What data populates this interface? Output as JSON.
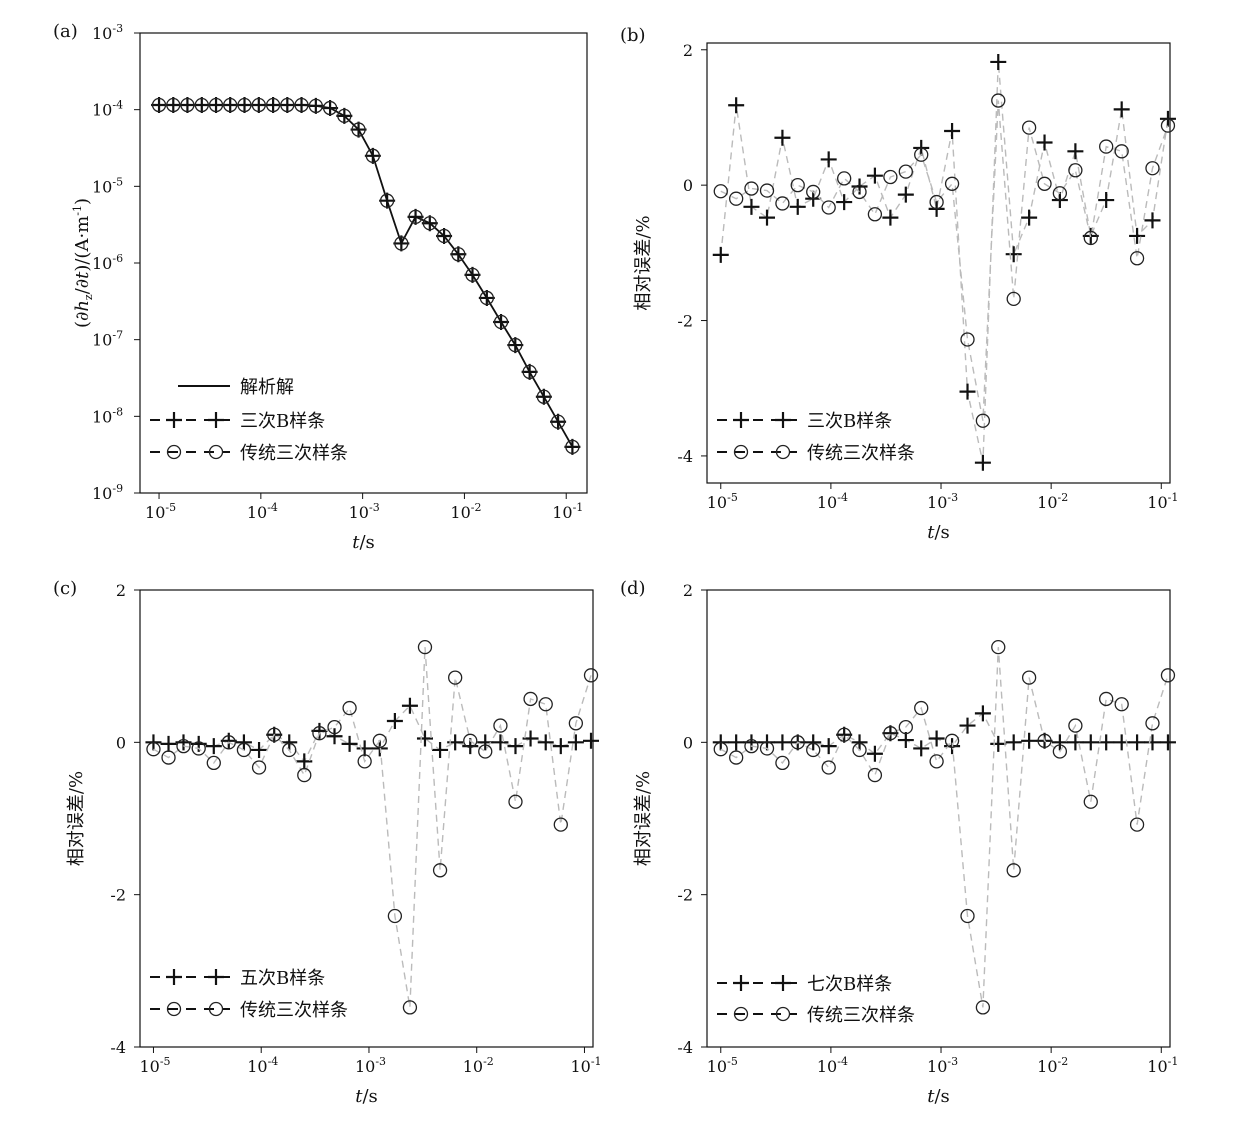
{
  "figure": {
    "ytick_exp_base": "10",
    "xtick_exp_base": "10"
  },
  "chart_data": [
    {
      "id": "a",
      "type": "line",
      "panel_label": "(a)",
      "xlabel_italic": "t",
      "xlabel_rest": "/s",
      "ylabel": "(∂h_z/∂t)/(A·m⁻¹)",
      "ylabel_parts": [
        "(∂",
        "h",
        "z",
        "/∂",
        "t",
        ")/(A·m",
        "-1",
        ")"
      ],
      "xscale": "log",
      "yscale": "log",
      "xlim": [
        6.5e-06,
        0.16
      ],
      "ylim": [
        1e-09,
        0.001
      ],
      "xtick_exponents": [
        "-5",
        "-4",
        "-3",
        "-2",
        "-1"
      ],
      "xtick_values": [
        1e-05,
        0.0001,
        0.001,
        0.01,
        0.1
      ],
      "ytick_exponents": [
        "-3",
        "-4",
        "-5",
        "-6",
        "-7",
        "-8",
        "-9"
      ],
      "ytick_values": [
        0.001,
        0.0001,
        1e-05,
        1e-06,
        1e-07,
        1e-08,
        1e-09
      ],
      "legend_position": "bottom-left",
      "x": [
        1e-05,
        1.38e-05,
        1.9e-05,
        2.63e-05,
        3.63e-05,
        5e-05,
        6.91e-05,
        9.55e-05,
        0.000132,
        0.000182,
        0.000251,
        0.000347,
        0.000479,
        0.000661,
        0.000912,
        0.00126,
        0.00174,
        0.0024,
        0.00331,
        0.00457,
        0.00631,
        0.00871,
        0.012,
        0.0166,
        0.0229,
        0.0316,
        0.0437,
        0.0603,
        0.0832,
        0.115
      ],
      "series": [
        {
          "name": "解析解",
          "marker": "none",
          "line": "solid",
          "color": "#111111",
          "values": [
            0.000115,
            0.000115,
            0.000115,
            0.000115,
            0.000115,
            0.000115,
            0.000115,
            0.000115,
            0.000115,
            0.000115,
            0.000115,
            0.000112,
            0.000105,
            8.3e-05,
            5.5e-05,
            2.5e-05,
            6.5e-06,
            1.8e-06,
            4e-06,
            3.3e-06,
            2.25e-06,
            1.3e-06,
            7e-07,
            3.5e-07,
            1.7e-07,
            8.5e-08,
            3.8e-08,
            1.8e-08,
            8.5e-09,
            4e-09
          ]
        },
        {
          "name": "三次B样条",
          "marker": "plus",
          "line": "dashed",
          "color": "#111111",
          "values": [
            0.000115,
            0.000115,
            0.000115,
            0.000115,
            0.000115,
            0.000115,
            0.000115,
            0.000115,
            0.000115,
            0.000115,
            0.000115,
            0.000112,
            0.000105,
            8.3e-05,
            5.5e-05,
            2.5e-05,
            6.5e-06,
            1.8e-06,
            4e-06,
            3.3e-06,
            2.25e-06,
            1.3e-06,
            7e-07,
            3.5e-07,
            1.7e-07,
            8.5e-08,
            3.8e-08,
            1.8e-08,
            8.5e-09,
            4e-09
          ]
        },
        {
          "name": "传统三次样条",
          "marker": "circle",
          "line": "dashed",
          "color": "#111111",
          "values": [
            0.000115,
            0.000115,
            0.000115,
            0.000115,
            0.000115,
            0.000115,
            0.000115,
            0.000115,
            0.000115,
            0.000115,
            0.000115,
            0.000112,
            0.000105,
            8.3e-05,
            5.5e-05,
            2.5e-05,
            6.5e-06,
            1.8e-06,
            4e-06,
            3.3e-06,
            2.25e-06,
            1.3e-06,
            7e-07,
            3.5e-07,
            1.7e-07,
            8.5e-08,
            3.8e-08,
            1.8e-08,
            8.5e-09,
            4e-09
          ]
        }
      ]
    },
    {
      "id": "b",
      "type": "line",
      "panel_label": "(b)",
      "xlabel_italic": "t",
      "xlabel_rest": "/s",
      "ylabel": "相对误差/%",
      "xscale": "log",
      "yscale": "linear",
      "xlim": [
        7.5e-06,
        0.12
      ],
      "ylim": [
        -4.4,
        2.1
      ],
      "xtick_exponents": [
        "-5",
        "-4",
        "-3",
        "-2",
        "-1"
      ],
      "xtick_values": [
        1e-05,
        0.0001,
        0.001,
        0.01,
        0.1
      ],
      "ytick_labels": [
        "2",
        "0",
        "-2",
        "-4"
      ],
      "ytick_values": [
        2,
        0,
        -2,
        -4
      ],
      "legend_position": "bottom-left",
      "series": [
        {
          "name": "三次B样条",
          "marker": "plus",
          "line": "dashed",
          "color": "#111111",
          "x": [
            1e-05,
            1.38e-05,
            1.9e-05,
            2.63e-05,
            3.63e-05,
            5e-05,
            6.91e-05,
            9.55e-05,
            0.000132,
            0.000182,
            0.000251,
            0.000347,
            0.000479,
            0.000661,
            0.000912,
            0.00126,
            0.00174,
            0.0024,
            0.00331,
            0.00457,
            0.00631,
            0.00871,
            0.012,
            0.0166,
            0.0229,
            0.0316,
            0.0437,
            0.0603,
            0.0832,
            0.115
          ],
          "values": [
            -1.03,
            1.18,
            -0.32,
            -0.48,
            0.7,
            -0.32,
            -0.2,
            0.38,
            -0.25,
            -0.02,
            0.14,
            -0.48,
            -0.14,
            0.55,
            -0.35,
            0.8,
            -3.05,
            -4.1,
            1.82,
            -1.02,
            -0.48,
            0.63,
            -0.22,
            0.5,
            -0.75,
            -0.22,
            1.12,
            -0.75,
            -0.52,
            0.98
          ]
        },
        {
          "name": "传统三次样条",
          "marker": "circle",
          "line": "dashed",
          "color": "#111111",
          "x": [
            1e-05,
            1.38e-05,
            1.9e-05,
            2.63e-05,
            3.63e-05,
            5e-05,
            6.91e-05,
            9.55e-05,
            0.000132,
            0.000182,
            0.000251,
            0.000347,
            0.000479,
            0.000661,
            0.000912,
            0.00126,
            0.00174,
            0.0024,
            0.00331,
            0.00457,
            0.00631,
            0.00871,
            0.012,
            0.0166,
            0.0229,
            0.0316,
            0.0437,
            0.0603,
            0.0832,
            0.115
          ],
          "values": [
            -0.09,
            -0.2,
            -0.05,
            -0.08,
            -0.27,
            0.0,
            -0.1,
            -0.33,
            0.1,
            -0.1,
            -0.43,
            0.12,
            0.2,
            0.45,
            -0.25,
            0.02,
            -2.28,
            -3.48,
            1.25,
            -1.68,
            0.85,
            0.02,
            -0.12,
            0.22,
            -0.78,
            0.57,
            0.5,
            -1.08,
            0.25,
            0.88
          ]
        }
      ]
    },
    {
      "id": "c",
      "type": "line",
      "panel_label": "(c)",
      "xlabel_italic": "t",
      "xlabel_rest": "/s",
      "ylabel": "相对误差/%",
      "xscale": "log",
      "yscale": "linear",
      "xlim": [
        7.5e-06,
        0.12
      ],
      "ylim": [
        -4,
        2
      ],
      "xtick_exponents": [
        "-5",
        "-4",
        "-3",
        "-2",
        "-1"
      ],
      "xtick_values": [
        1e-05,
        0.0001,
        0.001,
        0.01,
        0.1
      ],
      "ytick_labels": [
        "2",
        "0",
        "-2",
        "-4"
      ],
      "ytick_values": [
        2,
        0,
        -2,
        -4
      ],
      "legend_position": "bottom-left",
      "series": [
        {
          "name": "五次B样条",
          "marker": "plus",
          "line": "dashed",
          "color": "#111111",
          "x": [
            1e-05,
            1.38e-05,
            1.9e-05,
            2.63e-05,
            3.63e-05,
            5e-05,
            6.91e-05,
            9.55e-05,
            0.000132,
            0.000182,
            0.000251,
            0.000347,
            0.000479,
            0.000661,
            0.000912,
            0.00126,
            0.00174,
            0.0024,
            0.00331,
            0.00457,
            0.00631,
            0.00871,
            0.012,
            0.0166,
            0.0229,
            0.0316,
            0.0437,
            0.0603,
            0.0832,
            0.115
          ],
          "values": [
            0.0,
            -0.02,
            0.0,
            -0.02,
            -0.05,
            0.02,
            0.0,
            -0.1,
            0.1,
            0.0,
            -0.25,
            0.15,
            0.08,
            -0.02,
            -0.08,
            -0.08,
            0.28,
            0.48,
            0.05,
            -0.1,
            0.0,
            -0.05,
            0.0,
            0.0,
            -0.05,
            0.05,
            0.0,
            -0.05,
            0.0,
            0.02
          ]
        },
        {
          "name": "传统三次样条",
          "marker": "circle",
          "line": "dashed",
          "color": "#111111",
          "x": [
            1e-05,
            1.38e-05,
            1.9e-05,
            2.63e-05,
            3.63e-05,
            5e-05,
            6.91e-05,
            9.55e-05,
            0.000132,
            0.000182,
            0.000251,
            0.000347,
            0.000479,
            0.000661,
            0.000912,
            0.00126,
            0.00174,
            0.0024,
            0.00331,
            0.00457,
            0.00631,
            0.00871,
            0.012,
            0.0166,
            0.0229,
            0.0316,
            0.0437,
            0.0603,
            0.0832,
            0.115
          ],
          "values": [
            -0.09,
            -0.2,
            -0.05,
            -0.08,
            -0.27,
            0.0,
            -0.1,
            -0.33,
            0.1,
            -0.1,
            -0.43,
            0.12,
            0.2,
            0.45,
            -0.25,
            0.02,
            -2.28,
            -3.48,
            1.25,
            -1.68,
            0.85,
            0.02,
            -0.12,
            0.22,
            -0.78,
            0.57,
            0.5,
            -1.08,
            0.25,
            0.88
          ]
        }
      ]
    },
    {
      "id": "d",
      "type": "line",
      "panel_label": "(d)",
      "xlabel_italic": "t",
      "xlabel_rest": "/s",
      "ylabel": "相对误差/%",
      "xscale": "log",
      "yscale": "linear",
      "xlim": [
        7.5e-06,
        0.12
      ],
      "ylim": [
        -4,
        2
      ],
      "xtick_exponents": [
        "-5",
        "-4",
        "-3",
        "-2",
        "-1"
      ],
      "xtick_values": [
        1e-05,
        0.0001,
        0.001,
        0.01,
        0.1
      ],
      "ytick_labels": [
        "2",
        "0",
        "-2",
        "-4"
      ],
      "ytick_values": [
        2,
        0,
        -2,
        -4
      ],
      "legend_position": "bottom-left",
      "series": [
        {
          "name": "七次B样条",
          "marker": "plus",
          "line": "dashed",
          "color": "#111111",
          "x": [
            1e-05,
            1.38e-05,
            1.9e-05,
            2.63e-05,
            3.63e-05,
            5e-05,
            6.91e-05,
            9.55e-05,
            0.000132,
            0.000182,
            0.000251,
            0.000347,
            0.000479,
            0.000661,
            0.000912,
            0.00126,
            0.00174,
            0.0024,
            0.00331,
            0.00457,
            0.00631,
            0.00871,
            0.012,
            0.0166,
            0.0229,
            0.0316,
            0.0437,
            0.0603,
            0.0832,
            0.115
          ],
          "values": [
            0.0,
            0.0,
            0.0,
            0.0,
            0.0,
            0.0,
            0.0,
            -0.05,
            0.1,
            0.0,
            -0.15,
            0.12,
            0.03,
            -0.08,
            0.05,
            -0.05,
            0.22,
            0.38,
            -0.02,
            0.0,
            0.02,
            0.02,
            0.0,
            0.0,
            0.0,
            0.0,
            0.0,
            0.0,
            0.0,
            0.0
          ]
        },
        {
          "name": "传统三次样条",
          "marker": "circle",
          "line": "dashed",
          "color": "#111111",
          "x": [
            1e-05,
            1.38e-05,
            1.9e-05,
            2.63e-05,
            3.63e-05,
            5e-05,
            6.91e-05,
            9.55e-05,
            0.000132,
            0.000182,
            0.000251,
            0.000347,
            0.000479,
            0.000661,
            0.000912,
            0.00126,
            0.00174,
            0.0024,
            0.00331,
            0.00457,
            0.00631,
            0.00871,
            0.012,
            0.0166,
            0.0229,
            0.0316,
            0.0437,
            0.0603,
            0.0832,
            0.115
          ],
          "values": [
            -0.09,
            -0.2,
            -0.05,
            -0.08,
            -0.27,
            0.0,
            -0.1,
            -0.33,
            0.1,
            -0.1,
            -0.43,
            0.12,
            0.2,
            0.45,
            -0.25,
            0.02,
            -2.28,
            -3.48,
            1.25,
            -1.68,
            0.85,
            0.02,
            -0.12,
            0.22,
            -0.78,
            0.57,
            0.5,
            -1.08,
            0.25,
            0.88
          ]
        }
      ]
    }
  ]
}
